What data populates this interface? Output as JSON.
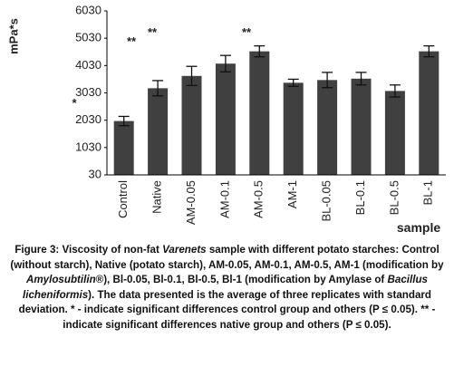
{
  "chart_data": {
    "type": "bar",
    "y_label": "mPa*s",
    "x_label": "sample",
    "categories": [
      "Control",
      "Native",
      "AM-0.05",
      "AM-0.1",
      "AM-0.5",
      "AM-1",
      "BL-0.05",
      "BL-0.1",
      "BL-0.5",
      "BL-1"
    ],
    "values": [
      2000,
      3200,
      3650,
      4100,
      4550,
      3400,
      3500,
      3550,
      3100,
      4550
    ],
    "errors": [
      170,
      280,
      350,
      300,
      200,
      130,
      280,
      230,
      220,
      200
    ],
    "color": "#404040",
    "ylim": [
      30,
      6030
    ],
    "yticks": [
      30,
      1030,
      2030,
      3030,
      4030,
      5030,
      6030
    ],
    "grid": false,
    "annotations": [
      "**",
      "**",
      "**",
      "*"
    ],
    "caption": [
      {
        "text": "Figure 3: Viscosity of non-fat ",
        "italic": false
      },
      {
        "text": "Varenets",
        "italic": true
      },
      {
        "text": " sample with different potato starches: Control (without starch), Native (potato starch), AM-0.05, AM-0.1, AM-0.5, AM-1 (modification by ",
        "italic": false
      },
      {
        "text": "Amylosubtilin",
        "italic": true
      },
      {
        "text": "®), Bl-0.05, Bl-0.1, Bl-0.5, Bl-1 (modification by Amylase of ",
        "italic": false
      },
      {
        "text": "Bacillus licheniformis",
        "italic": true
      },
      {
        "text": "). The data presented is the average of three replicates with standard deviation. * - indicate significant differences control group and others (P ≤ 0.05). ** - indicate significant differences native group and others (P ≤ 0.05).",
        "italic": false
      }
    ]
  }
}
